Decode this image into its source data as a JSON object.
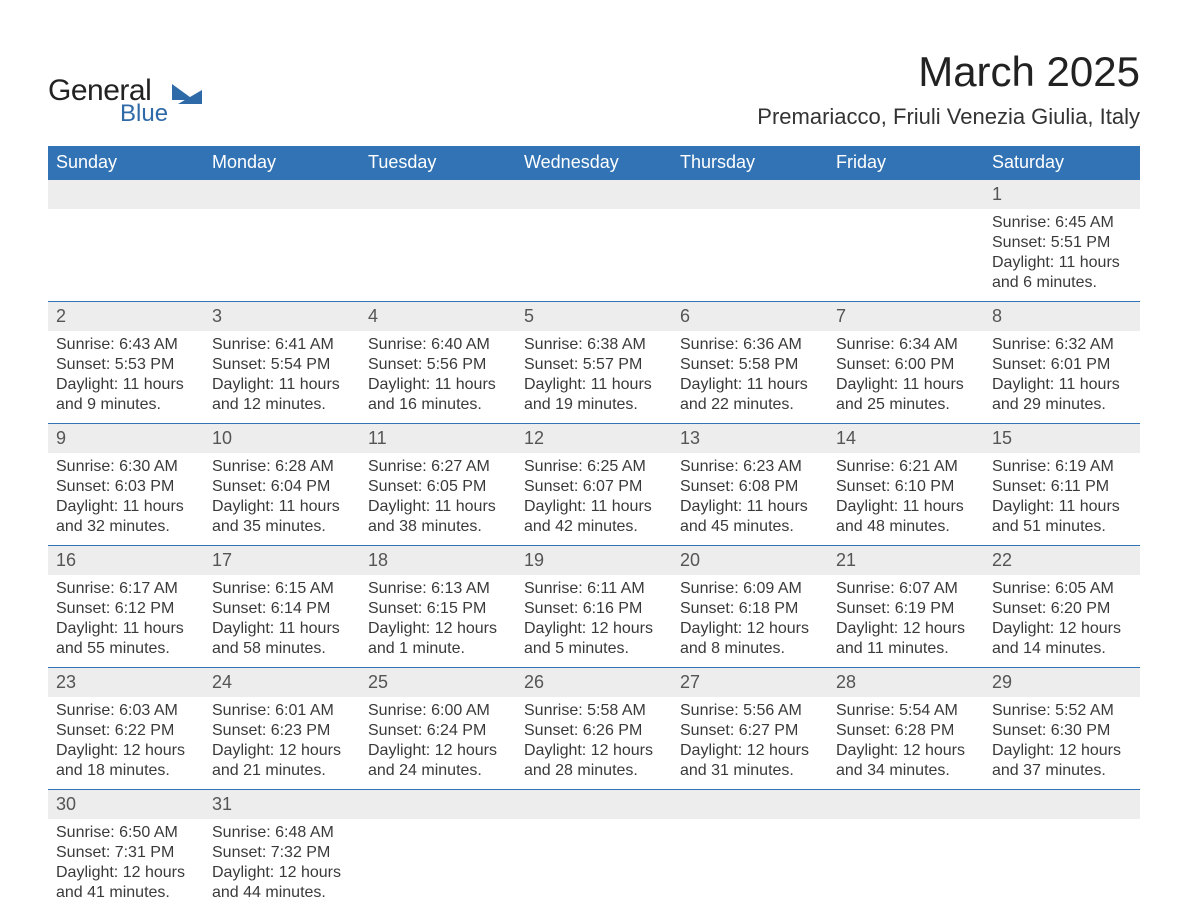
{
  "logo": {
    "general": "General",
    "blue": "Blue",
    "mark_color": "#2f6aa8"
  },
  "title": "March 2025",
  "location": "Premariacco, Friuli Venezia Giulia, Italy",
  "header_bg": "#3173b5",
  "header_fg": "#ffffff",
  "daynum_bg": "#ededed",
  "border_color": "#3173b5",
  "columns": [
    "Sunday",
    "Monday",
    "Tuesday",
    "Wednesday",
    "Thursday",
    "Friday",
    "Saturday"
  ],
  "weeks": [
    [
      null,
      null,
      null,
      null,
      null,
      null,
      {
        "n": "1",
        "sunrise": "6:45 AM",
        "sunset": "5:51 PM",
        "dayh": "11",
        "daym": "6"
      }
    ],
    [
      {
        "n": "2",
        "sunrise": "6:43 AM",
        "sunset": "5:53 PM",
        "dayh": "11",
        "daym": "9"
      },
      {
        "n": "3",
        "sunrise": "6:41 AM",
        "sunset": "5:54 PM",
        "dayh": "11",
        "daym": "12"
      },
      {
        "n": "4",
        "sunrise": "6:40 AM",
        "sunset": "5:56 PM",
        "dayh": "11",
        "daym": "16"
      },
      {
        "n": "5",
        "sunrise": "6:38 AM",
        "sunset": "5:57 PM",
        "dayh": "11",
        "daym": "19"
      },
      {
        "n": "6",
        "sunrise": "6:36 AM",
        "sunset": "5:58 PM",
        "dayh": "11",
        "daym": "22"
      },
      {
        "n": "7",
        "sunrise": "6:34 AM",
        "sunset": "6:00 PM",
        "dayh": "11",
        "daym": "25"
      },
      {
        "n": "8",
        "sunrise": "6:32 AM",
        "sunset": "6:01 PM",
        "dayh": "11",
        "daym": "29"
      }
    ],
    [
      {
        "n": "9",
        "sunrise": "6:30 AM",
        "sunset": "6:03 PM",
        "dayh": "11",
        "daym": "32"
      },
      {
        "n": "10",
        "sunrise": "6:28 AM",
        "sunset": "6:04 PM",
        "dayh": "11",
        "daym": "35"
      },
      {
        "n": "11",
        "sunrise": "6:27 AM",
        "sunset": "6:05 PM",
        "dayh": "11",
        "daym": "38"
      },
      {
        "n": "12",
        "sunrise": "6:25 AM",
        "sunset": "6:07 PM",
        "dayh": "11",
        "daym": "42"
      },
      {
        "n": "13",
        "sunrise": "6:23 AM",
        "sunset": "6:08 PM",
        "dayh": "11",
        "daym": "45"
      },
      {
        "n": "14",
        "sunrise": "6:21 AM",
        "sunset": "6:10 PM",
        "dayh": "11",
        "daym": "48"
      },
      {
        "n": "15",
        "sunrise": "6:19 AM",
        "sunset": "6:11 PM",
        "dayh": "11",
        "daym": "51"
      }
    ],
    [
      {
        "n": "16",
        "sunrise": "6:17 AM",
        "sunset": "6:12 PM",
        "dayh": "11",
        "daym": "55"
      },
      {
        "n": "17",
        "sunrise": "6:15 AM",
        "sunset": "6:14 PM",
        "dayh": "11",
        "daym": "58"
      },
      {
        "n": "18",
        "sunrise": "6:13 AM",
        "sunset": "6:15 PM",
        "dayh": "12",
        "daym": "1"
      },
      {
        "n": "19",
        "sunrise": "6:11 AM",
        "sunset": "6:16 PM",
        "dayh": "12",
        "daym": "5"
      },
      {
        "n": "20",
        "sunrise": "6:09 AM",
        "sunset": "6:18 PM",
        "dayh": "12",
        "daym": "8"
      },
      {
        "n": "21",
        "sunrise": "6:07 AM",
        "sunset": "6:19 PM",
        "dayh": "12",
        "daym": "11"
      },
      {
        "n": "22",
        "sunrise": "6:05 AM",
        "sunset": "6:20 PM",
        "dayh": "12",
        "daym": "14"
      }
    ],
    [
      {
        "n": "23",
        "sunrise": "6:03 AM",
        "sunset": "6:22 PM",
        "dayh": "12",
        "daym": "18"
      },
      {
        "n": "24",
        "sunrise": "6:01 AM",
        "sunset": "6:23 PM",
        "dayh": "12",
        "daym": "21"
      },
      {
        "n": "25",
        "sunrise": "6:00 AM",
        "sunset": "6:24 PM",
        "dayh": "12",
        "daym": "24"
      },
      {
        "n": "26",
        "sunrise": "5:58 AM",
        "sunset": "6:26 PM",
        "dayh": "12",
        "daym": "28"
      },
      {
        "n": "27",
        "sunrise": "5:56 AM",
        "sunset": "6:27 PM",
        "dayh": "12",
        "daym": "31"
      },
      {
        "n": "28",
        "sunrise": "5:54 AM",
        "sunset": "6:28 PM",
        "dayh": "12",
        "daym": "34"
      },
      {
        "n": "29",
        "sunrise": "5:52 AM",
        "sunset": "6:30 PM",
        "dayh": "12",
        "daym": "37"
      }
    ],
    [
      {
        "n": "30",
        "sunrise": "6:50 AM",
        "sunset": "7:31 PM",
        "dayh": "12",
        "daym": "41"
      },
      {
        "n": "31",
        "sunrise": "6:48 AM",
        "sunset": "7:32 PM",
        "dayh": "12",
        "daym": "44"
      },
      null,
      null,
      null,
      null,
      null
    ]
  ],
  "labels": {
    "sunrise": "Sunrise: ",
    "sunset": "Sunset: ",
    "daylight_a": "Daylight: ",
    "daylight_b": " hours and ",
    "daylight_b1": " hours\nand ",
    "daylight_c_s": " minute.",
    "daylight_c_p": " minutes."
  }
}
